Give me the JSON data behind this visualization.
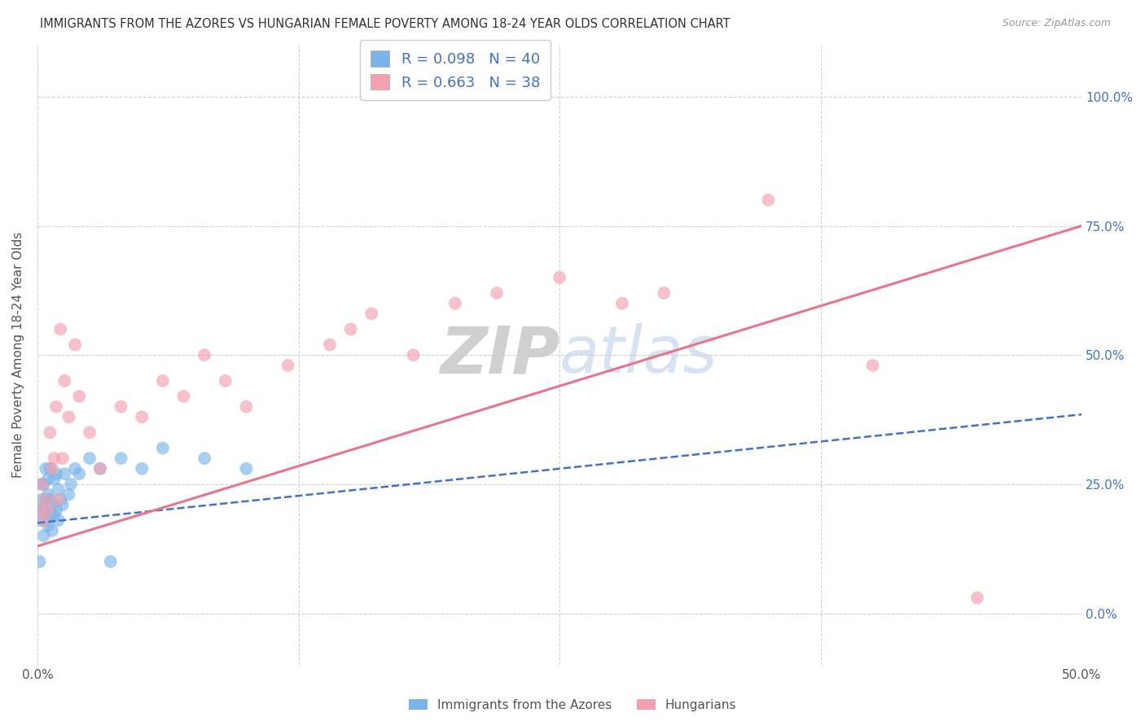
{
  "title": "IMMIGRANTS FROM THE AZORES VS HUNGARIAN FEMALE POVERTY AMONG 18-24 YEAR OLDS CORRELATION CHART",
  "source": "Source: ZipAtlas.com",
  "ylabel": "Female Poverty Among 18-24 Year Olds",
  "xlim": [
    0.0,
    0.5
  ],
  "ylim": [
    -0.1,
    1.1
  ],
  "xticks": [
    0.0,
    0.125,
    0.25,
    0.375,
    0.5
  ],
  "xtick_labels": [
    "0.0%",
    "",
    "",
    "",
    "50.0%"
  ],
  "yticks": [
    0.0,
    0.25,
    0.5,
    0.75,
    1.0
  ],
  "ytick_labels_left": [
    "",
    "",
    "",
    "",
    ""
  ],
  "ytick_labels_right": [
    "0.0%",
    "25.0%",
    "50.0%",
    "75.0%",
    "100.0%"
  ],
  "r_azores": 0.098,
  "n_azores": 40,
  "r_hungarian": 0.663,
  "n_hungarian": 38,
  "color_azores": "#7ab4e8",
  "color_hungarian": "#f4a0b0",
  "trendline_azores_color": "#4472c4",
  "trendline_hungarian_color": "#e8758a",
  "background_color": "#ffffff",
  "watermark_color": "#d0dff0",
  "azores_x": [
    0.001,
    0.001,
    0.002,
    0.002,
    0.002,
    0.003,
    0.003,
    0.003,
    0.004,
    0.004,
    0.004,
    0.005,
    0.005,
    0.005,
    0.006,
    0.006,
    0.006,
    0.007,
    0.007,
    0.008,
    0.008,
    0.009,
    0.009,
    0.01,
    0.01,
    0.011,
    0.012,
    0.013,
    0.015,
    0.016,
    0.018,
    0.02,
    0.025,
    0.03,
    0.035,
    0.04,
    0.05,
    0.06,
    0.08,
    0.1
  ],
  "azores_y": [
    0.1,
    0.18,
    0.2,
    0.22,
    0.25,
    0.15,
    0.2,
    0.25,
    0.18,
    0.22,
    0.28,
    0.17,
    0.23,
    0.26,
    0.19,
    0.22,
    0.28,
    0.16,
    0.21,
    0.19,
    0.26,
    0.2,
    0.27,
    0.18,
    0.24,
    0.22,
    0.21,
    0.27,
    0.23,
    0.25,
    0.28,
    0.27,
    0.3,
    0.28,
    0.1,
    0.3,
    0.28,
    0.32,
    0.3,
    0.28
  ],
  "hungarian_x": [
    0.001,
    0.002,
    0.003,
    0.004,
    0.005,
    0.006,
    0.007,
    0.008,
    0.009,
    0.01,
    0.011,
    0.012,
    0.013,
    0.015,
    0.018,
    0.02,
    0.025,
    0.03,
    0.04,
    0.05,
    0.06,
    0.07,
    0.08,
    0.09,
    0.1,
    0.12,
    0.14,
    0.15,
    0.16,
    0.18,
    0.2,
    0.22,
    0.25,
    0.28,
    0.3,
    0.35,
    0.4,
    0.45
  ],
  "hungarian_y": [
    0.2,
    0.25,
    0.18,
    0.22,
    0.2,
    0.35,
    0.28,
    0.3,
    0.4,
    0.22,
    0.55,
    0.3,
    0.45,
    0.38,
    0.52,
    0.42,
    0.35,
    0.28,
    0.4,
    0.38,
    0.45,
    0.42,
    0.5,
    0.45,
    0.4,
    0.48,
    0.52,
    0.55,
    0.58,
    0.5,
    0.6,
    0.62,
    0.65,
    0.6,
    0.62,
    0.8,
    0.48,
    0.03
  ]
}
